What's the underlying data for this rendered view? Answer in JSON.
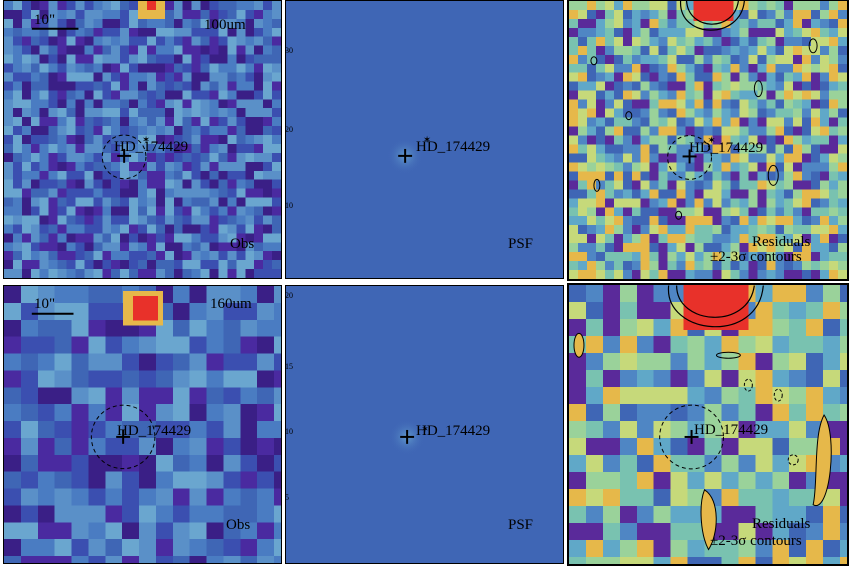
{
  "source_name": "HD_174429",
  "scale_bar_text": "10\"",
  "rows": [
    {
      "band": "100um",
      "panels": [
        {
          "kind": "obs",
          "label": "Obs"
        },
        {
          "kind": "psf",
          "label": "PSF"
        },
        {
          "kind": "residual",
          "label": "Residuals",
          "sublabel": "±2-3σ contours"
        }
      ]
    },
    {
      "band": "160um",
      "panels": [
        {
          "kind": "obs",
          "label": "Obs"
        },
        {
          "kind": "psf",
          "label": "PSF"
        },
        {
          "kind": "residual",
          "label": "Residuals",
          "sublabel": "±2-3σ contours"
        }
      ]
    }
  ],
  "axis_ticks_row1": [
    "30",
    "20",
    "10"
  ],
  "axis_ticks_row2": [
    "20",
    "15",
    "10",
    "5"
  ],
  "colors": {
    "map_background": "#3f66b5",
    "hot_source": "#e8312a"
  }
}
